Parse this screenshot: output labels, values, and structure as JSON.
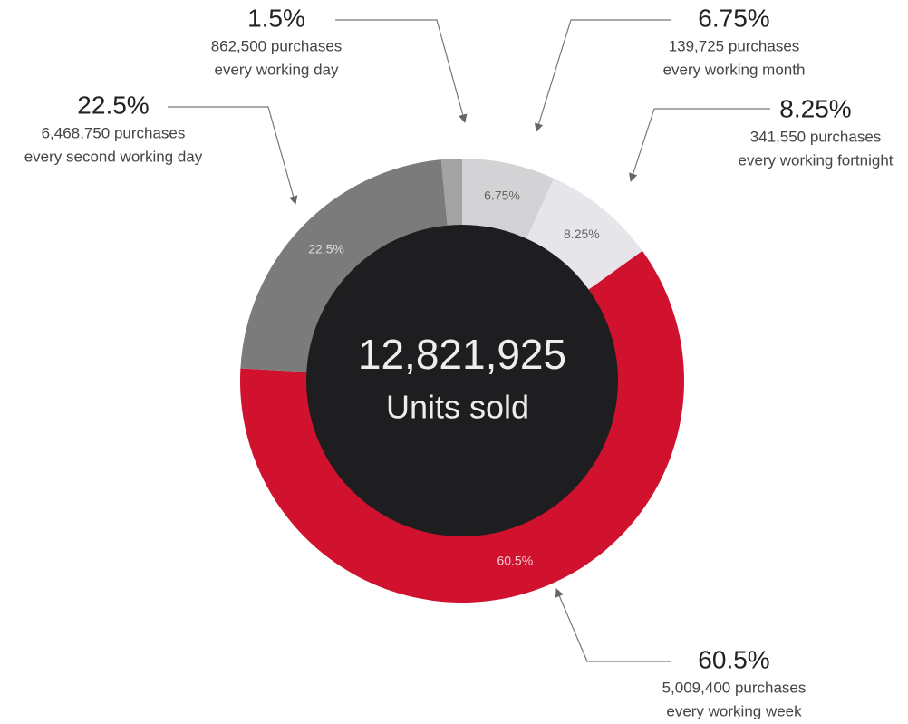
{
  "chart_data": {
    "type": "donut",
    "values": [
      6.75,
      8.25,
      60.5,
      22.5,
      1.5
    ],
    "value_labels": [
      "6.75%",
      "8.25%",
      "60.5%",
      "22.5%",
      "1.5%"
    ],
    "colors": [
      "#d3d3d6",
      "#e6e6ea",
      "#d0122f",
      "#7b7b7b",
      "#a3a3a3"
    ],
    "details": [
      [
        "139,725 purchases",
        "every working month"
      ],
      [
        "341,550 purchases",
        "every working fortnight"
      ],
      [
        "5,009,400 purchases",
        "every working week"
      ],
      [
        "6,468,750 purchases",
        "every second working day"
      ],
      [
        "862,500 purchases",
        "every working day"
      ]
    ],
    "center_value": "12,821,925",
    "center_text": "Units sold"
  }
}
